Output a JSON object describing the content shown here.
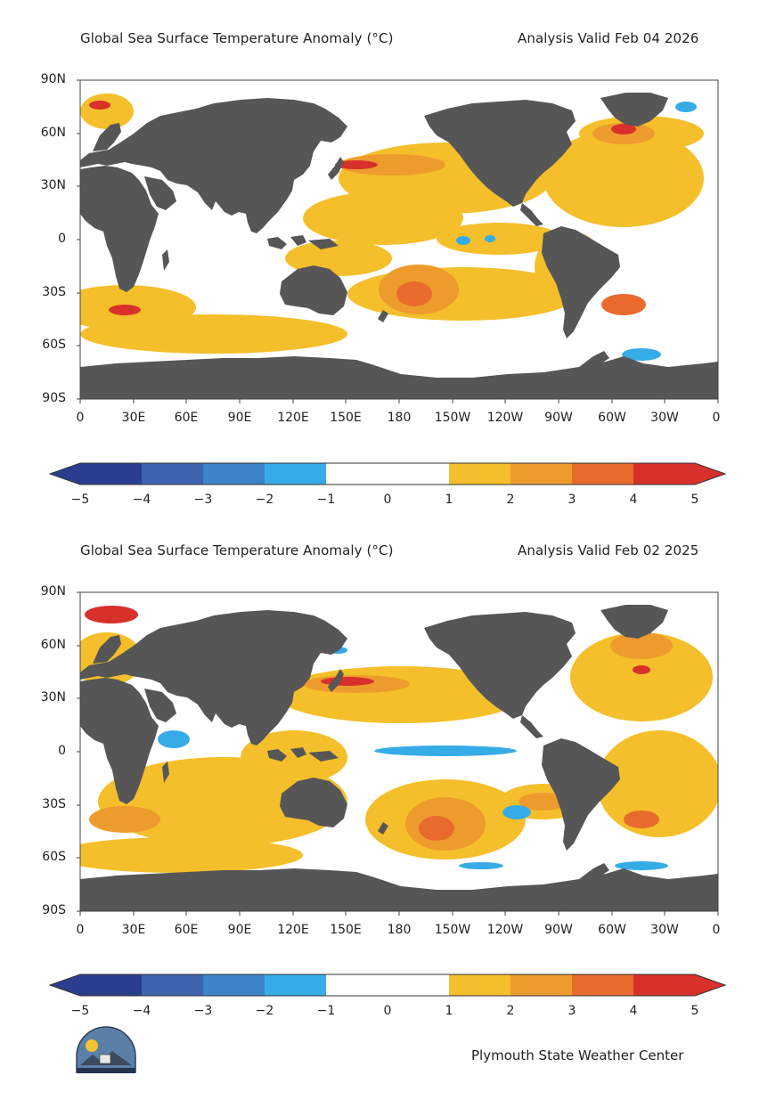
{
  "colors": {
    "land": "#565656",
    "ocean": "#ffffff",
    "levels": [
      "#2b3e8e",
      "#3e64ad",
      "#3c83c7",
      "#36ace6",
      "#ffffff",
      "#ffffff",
      "#f4bf2a",
      "#ee9b2e",
      "#e96a2d",
      "#d8302b"
    ]
  },
  "maps": [
    {
      "title": "Global Sea Surface Temperature Anomaly (°C)",
      "valid": "Analysis Valid Feb 04 2026",
      "lat_labels": [
        "90N",
        "60N",
        "30N",
        "0",
        "30S",
        "60S",
        "90S"
      ],
      "lon_labels": [
        "0",
        "30E",
        "60E",
        "90E",
        "120E",
        "150E",
        "180",
        "150W",
        "120W",
        "90W",
        "60W",
        "30W",
        "0"
      ],
      "colorbar_labels": [
        "−5",
        "−4",
        "−3",
        "−2",
        "−1",
        "0",
        "1",
        "2",
        "3",
        "4",
        "5"
      ]
    },
    {
      "title": "Global Sea Surface Temperature Anomaly (°C)",
      "valid": "Analysis Valid Feb 02 2025",
      "lat_labels": [
        "90N",
        "60N",
        "30N",
        "0",
        "30S",
        "60S",
        "90S"
      ],
      "lon_labels": [
        "0",
        "30E",
        "60E",
        "90E",
        "120E",
        "150E",
        "180",
        "150W",
        "120W",
        "90W",
        "60W",
        "30W",
        "0"
      ],
      "colorbar_labels": [
        "−5",
        "−4",
        "−3",
        "−2",
        "−1",
        "0",
        "1",
        "2",
        "3",
        "4",
        "5"
      ]
    }
  ],
  "credit": "Plymouth State Weather Center"
}
